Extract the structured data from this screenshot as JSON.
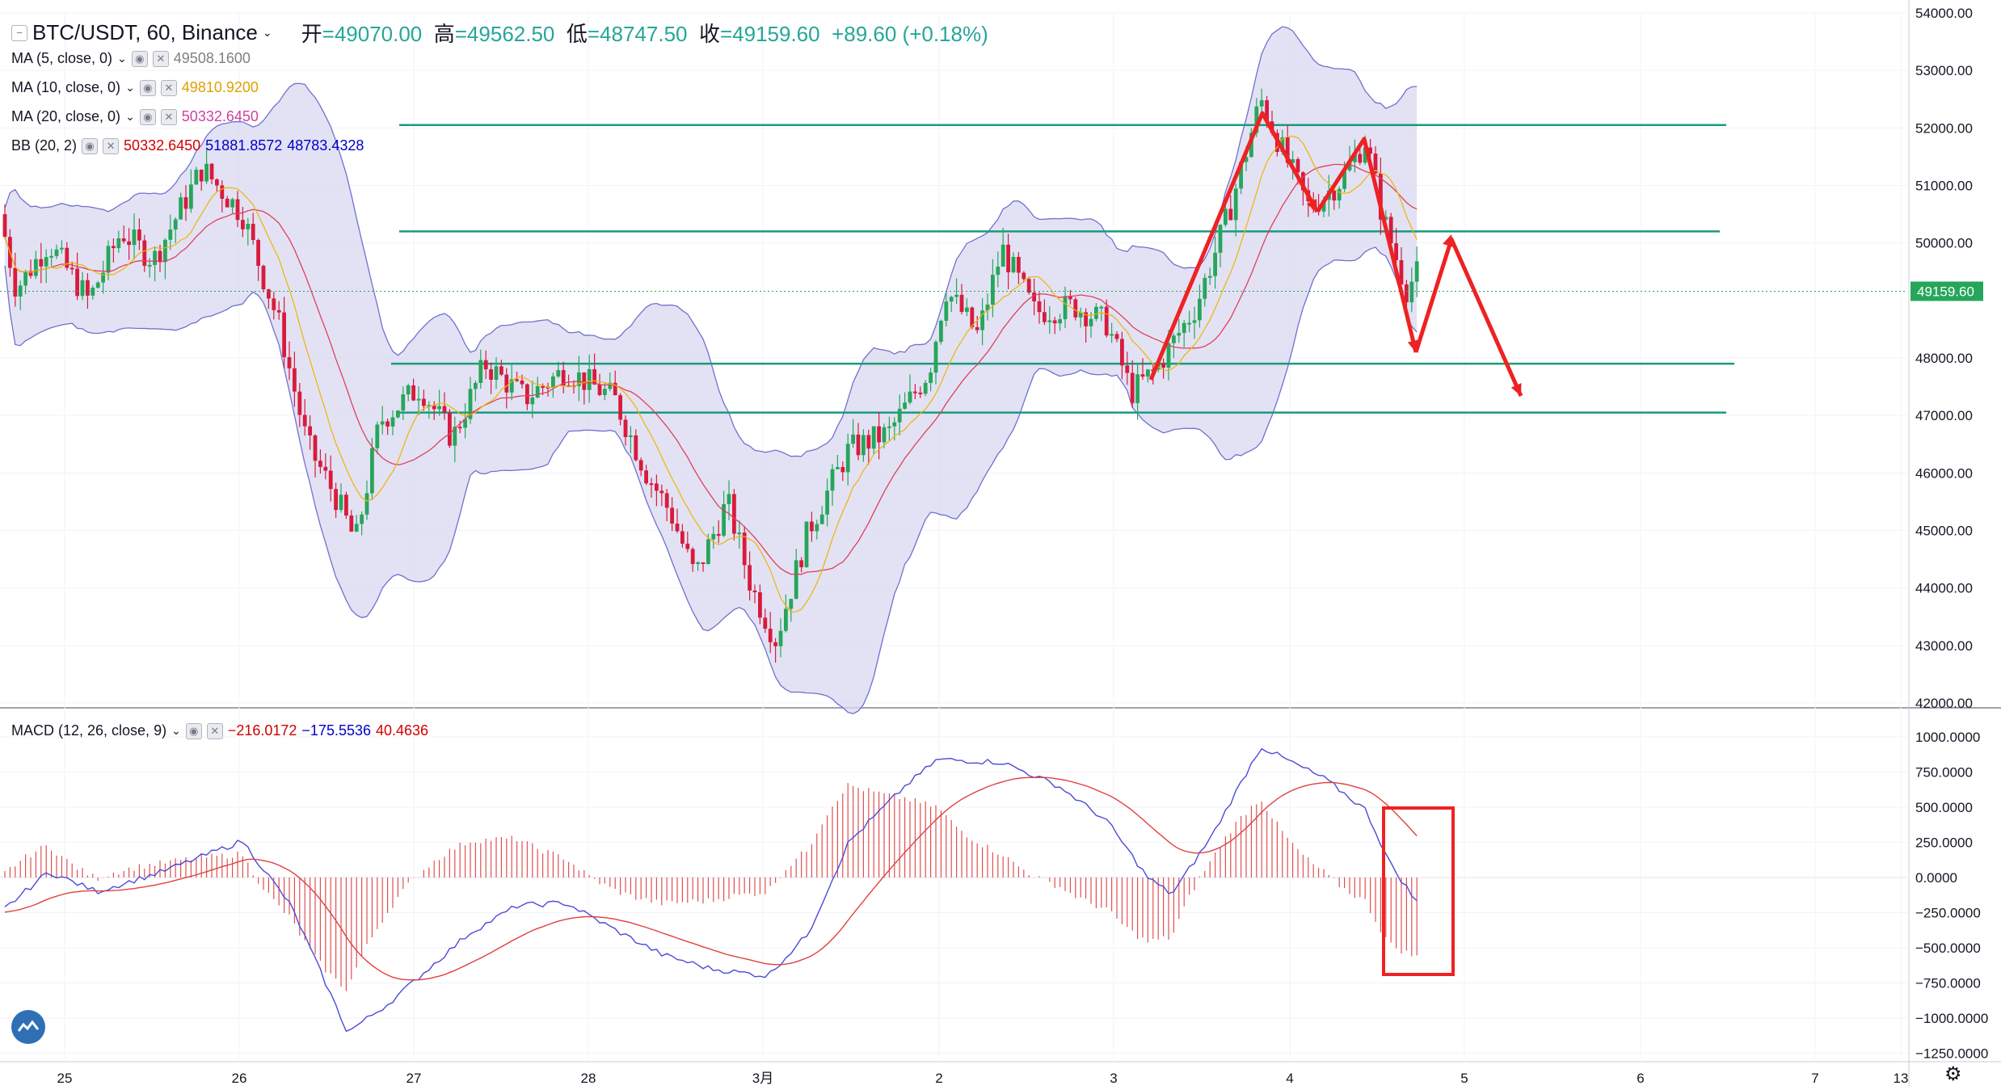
{
  "header": {
    "symbol": "BTC/USDT, 60, Binance",
    "open_label": "开",
    "open": "=49070.00",
    "high_label": "高",
    "high": "=49562.50",
    "low_label": "低",
    "low": "=48747.50",
    "close_label": "收",
    "close": "=49159.60",
    "change": "+89.60 (+0.18%)"
  },
  "indicators": [
    {
      "name": "MA (5, close, 0)",
      "values": [
        "49508.1600"
      ],
      "colors": [
        "#808080"
      ]
    },
    {
      "name": "MA (10, close, 0)",
      "values": [
        "49810.9200"
      ],
      "colors": [
        "#f0b400"
      ]
    },
    {
      "name": "MA (20, close, 0)",
      "values": [
        "50332.6450"
      ],
      "colors": [
        "#e040a0"
      ]
    },
    {
      "name": "BB (20, 2)",
      "values": [
        "50332.6450",
        "51881.8572",
        "48783.4328"
      ],
      "colors": [
        "#e00000",
        "#0000cc",
        "#0000cc"
      ]
    }
  ],
  "macd": {
    "name": "MACD (12, 26, close, 9)",
    "values": [
      "−216.0172",
      "−175.5536",
      "40.4636"
    ],
    "colors": [
      "#e00000",
      "#0000cc",
      "#e00000"
    ]
  },
  "price_axis": {
    "ticks": [
      "54000.00",
      "53000.00",
      "52000.00",
      "51000.00",
      "50000.00",
      "48000.00",
      "47000.00",
      "46000.00",
      "45000.00",
      "44000.00",
      "43000.00",
      "42000.00"
    ],
    "current": "49159.60"
  },
  "macd_axis": {
    "ticks": [
      "1000.0000",
      "750.0000",
      "500.0000",
      "250.0000",
      "0.0000",
      "−250.0000",
      "−500.0000",
      "−750.0000",
      "−1000.0000",
      "−1250.0000"
    ]
  },
  "time_axis": {
    "ticks": [
      "25",
      "26",
      "27",
      "28",
      "3月",
      "2",
      "3",
      "4",
      "5",
      "6",
      "7",
      "13"
    ]
  },
  "colors": {
    "up": "#26a65b",
    "down": "#d81b3c",
    "band_fill": "#d8d8f0",
    "band_line": "#7070d0",
    "level_line": "#1a9a7a",
    "arrow": "#ee2222",
    "macd_line": "#4a4ad8",
    "signal_line": "#e04040"
  },
  "chart_data": {
    "type": "candlestick",
    "price_ylim": [
      42000,
      54000
    ],
    "macd_ylim": [
      -1250,
      1000
    ],
    "horizontal_levels": [
      52050,
      50200,
      47900,
      47050
    ],
    "last_price": 49159.6
  }
}
